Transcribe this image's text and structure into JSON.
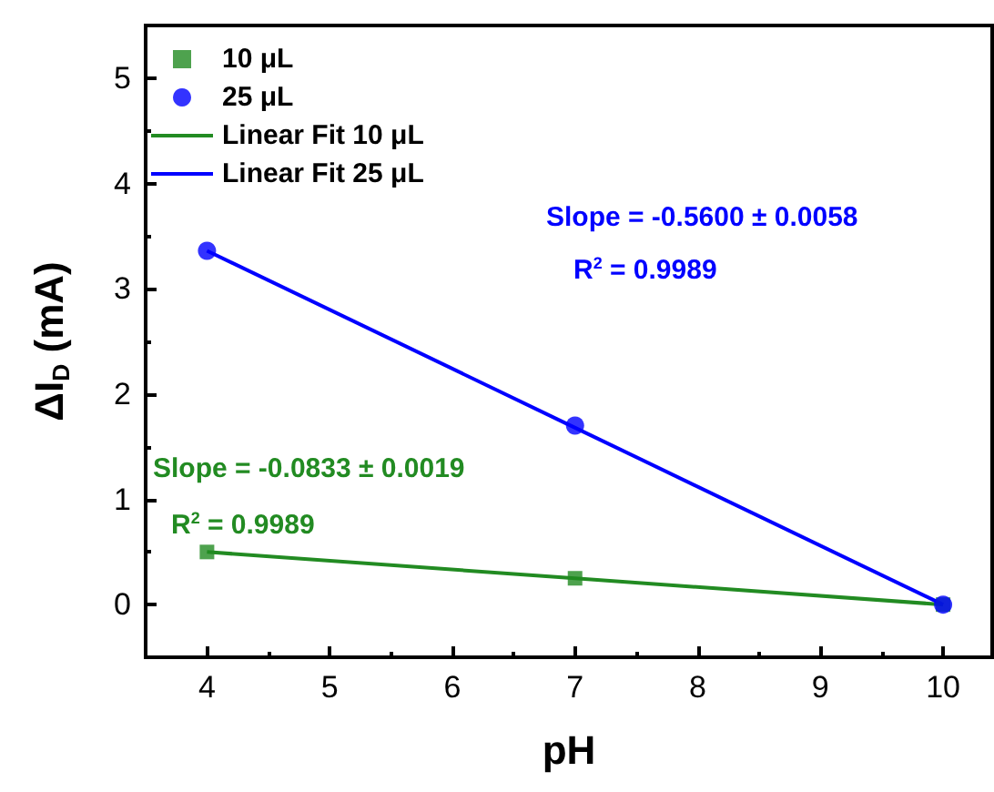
{
  "chart_data": {
    "type": "scatter",
    "xlabel": "pH",
    "ylabel": "ΔI$_{D}$ (mA)",
    "x": [
      4,
      7,
      10
    ],
    "series": [
      {
        "name": "10 μL",
        "color": "#228b22",
        "marker": "square",
        "values": [
          0.5,
          0.25,
          0.0
        ]
      },
      {
        "name": "25 μL",
        "color": "#0000ff",
        "marker": "circle",
        "values": [
          3.36,
          1.7,
          0.0
        ]
      },
      {
        "name": "Linear Fit 10 μL",
        "type": "line",
        "color": "#228b22",
        "marker": "none",
        "values": [
          0.5,
          0.25,
          0.0
        ]
      },
      {
        "name": "Linear Fit 25 μL",
        "type": "line",
        "color": "#0000ff",
        "marker": "none",
        "values": [
          3.36,
          1.68,
          0.0
        ]
      }
    ],
    "annotations": [
      "Slope = -0.5600 ± 0.0058",
      "R$^{2}$ = 0.9989",
      "Slope = -0.0833 ± 0.0019",
      "R$^{2}$ = 0.9989"
    ],
    "xlim": [
      3.5,
      10.4
    ],
    "ylim": [
      -0.5,
      5.5
    ],
    "xticks": [
      4,
      5,
      6,
      7,
      8,
      9,
      10
    ],
    "yticks": [
      0,
      1,
      2,
      3,
      4,
      5
    ],
    "grid": false,
    "legend": "top left"
  }
}
